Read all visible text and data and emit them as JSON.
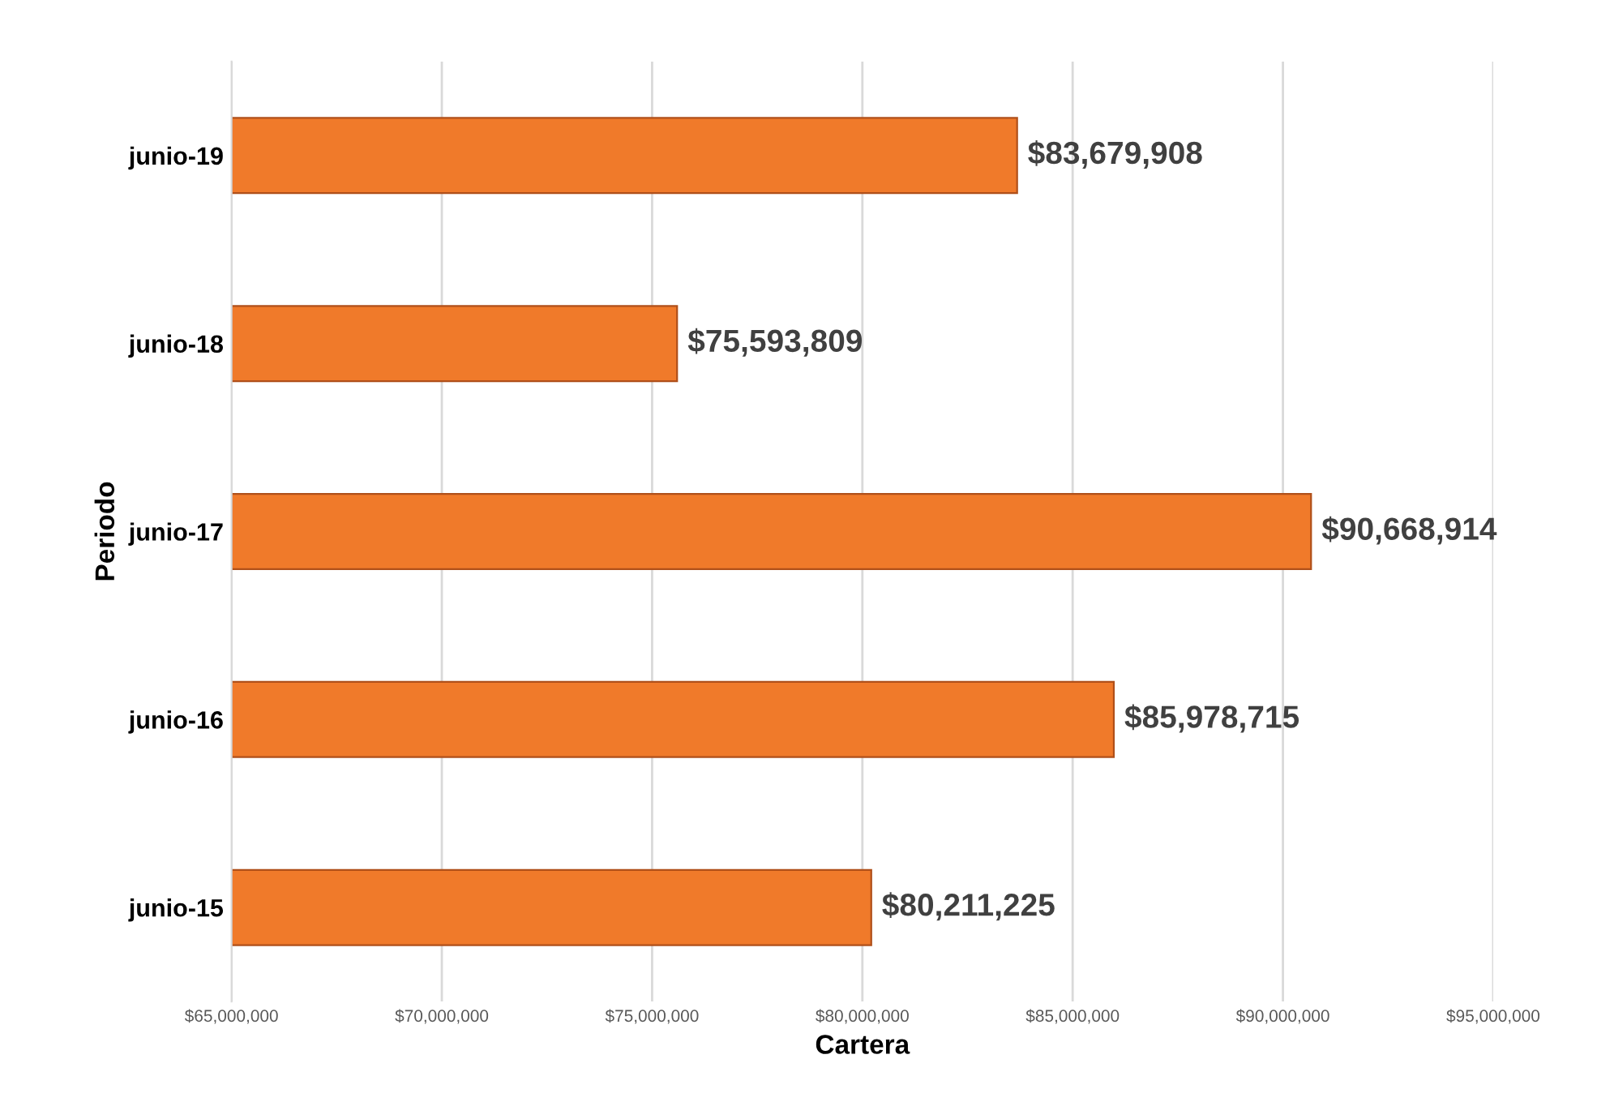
{
  "chart_data": {
    "type": "bar",
    "orientation": "horizontal",
    "xlabel": "Cartera",
    "ylabel": "Periodo",
    "categories": [
      "junio-19",
      "junio-18",
      "junio-17",
      "junio-16",
      "junio-15"
    ],
    "values": [
      83679908,
      75593809,
      90668914,
      85978715,
      80211225
    ],
    "value_labels": [
      "$83,679,908",
      "$75,593,809",
      "$90,668,914",
      "$85,978,715",
      "$80,211,225"
    ],
    "color": "#f07a2a",
    "xlim": [
      65000000,
      95000000
    ],
    "xticks": [
      {
        "value": 65000000,
        "label": "$65,000,000"
      },
      {
        "value": 70000000,
        "label": "$70,000,000"
      },
      {
        "value": 75000000,
        "label": "$75,000,000"
      },
      {
        "value": 80000000,
        "label": "$80,000,000"
      },
      {
        "value": 85000000,
        "label": "$85,000,000"
      },
      {
        "value": 90000000,
        "label": "$90,000,000"
      },
      {
        "value": 95000000,
        "label": "$95,000,000"
      }
    ],
    "grid": "x"
  }
}
